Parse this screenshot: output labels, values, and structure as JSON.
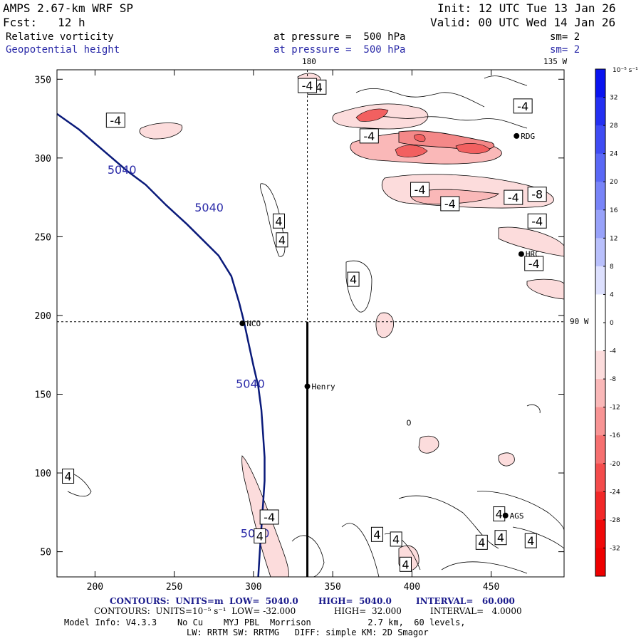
{
  "header": {
    "model": "AMPS 2.67-km WRF SP",
    "fcst": "Fcst:   12 h",
    "init": "Init: 12 UTC Tue 13 Jan 26",
    "valid": "Valid: 00 UTC Wed 14 Jan 26",
    "field1": "Relative vorticity",
    "field2": "Geopotential height",
    "pressure1": "at pressure =  500 hPa",
    "pressure2": "at pressure =  500 hPa",
    "sm1": "sm= 2",
    "sm2": "sm= 2"
  },
  "colors": {
    "height_contour": "#0a1a7a",
    "frame": "#000000"
  },
  "chart_data": {
    "type": "contour",
    "xlim": [
      176,
      496
    ],
    "ylim": [
      34,
      356
    ],
    "x_ticks": [
      200,
      250,
      300,
      350,
      400,
      450
    ],
    "y_ticks": [
      50,
      100,
      150,
      200,
      250,
      300,
      350
    ],
    "meridian_labels": {
      "top_180": "180",
      "top_135W": "135 W",
      "right_90W": "90 W"
    },
    "reference_lines": {
      "x_dashed": 334,
      "y_dashed": 196
    },
    "cross_section_line": {
      "x": 334,
      "y_from": 34,
      "y_to": 196
    },
    "height_contour": {
      "label": "5040",
      "points": [
        [
          176,
          328
        ],
        [
          190,
          318
        ],
        [
          205,
          305
        ],
        [
          220,
          292
        ],
        [
          232,
          283
        ],
        [
          245,
          270
        ],
        [
          258,
          258
        ],
        [
          268,
          248
        ],
        [
          278,
          238
        ],
        [
          286,
          225
        ],
        [
          291,
          208
        ],
        [
          294,
          196
        ],
        [
          297,
          182
        ],
        [
          300,
          168
        ],
        [
          303,
          155
        ],
        [
          305,
          140
        ],
        [
          306,
          125
        ],
        [
          307,
          110
        ],
        [
          307,
          95
        ],
        [
          306,
          80
        ],
        [
          305,
          65
        ],
        [
          304,
          50
        ],
        [
          303,
          34
        ]
      ],
      "label_positions": [
        [
          217,
          290
        ],
        [
          272,
          266
        ],
        [
          298,
          154
        ],
        [
          301,
          59
        ]
      ]
    },
    "stations": [
      {
        "name": "NCO",
        "x": 293,
        "y": 195
      },
      {
        "name": "Henry",
        "x": 334,
        "y": 155
      },
      {
        "name": "RDG",
        "x": 466,
        "y": 314
      },
      {
        "name": "HRC",
        "x": 469,
        "y": 239
      },
      {
        "name": "AGS",
        "x": 459,
        "y": 73
      }
    ],
    "vorticity_labels": [
      {
        "text": "-4",
        "x": 213,
        "y": 324
      },
      {
        "text": "-4",
        "x": 340,
        "y": 345
      },
      {
        "text": "-4",
        "x": 334,
        "y": 346
      },
      {
        "text": "-4",
        "x": 373,
        "y": 314
      },
      {
        "text": "-4",
        "x": 405,
        "y": 280
      },
      {
        "text": "-4",
        "x": 424,
        "y": 271
      },
      {
        "text": "-4",
        "x": 464,
        "y": 275
      },
      {
        "text": "-8",
        "x": 479,
        "y": 277
      },
      {
        "text": "-4",
        "x": 479,
        "y": 260
      },
      {
        "text": "-4",
        "x": 470,
        "y": 333
      },
      {
        "text": "-4",
        "x": 477,
        "y": 233
      },
      {
        "text": "4",
        "x": 316,
        "y": 260
      },
      {
        "text": "4",
        "x": 318,
        "y": 248
      },
      {
        "text": "4",
        "x": 363,
        "y": 223
      },
      {
        "text": "4",
        "x": 183,
        "y": 98
      },
      {
        "text": "-4",
        "x": 310,
        "y": 72
      },
      {
        "text": "4",
        "x": 304,
        "y": 60
      },
      {
        "text": "4",
        "x": 378,
        "y": 61
      },
      {
        "text": "4",
        "x": 390,
        "y": 58
      },
      {
        "text": "4",
        "x": 455,
        "y": 74
      },
      {
        "text": "4",
        "x": 456,
        "y": 59
      },
      {
        "text": "4",
        "x": 444,
        "y": 56
      },
      {
        "text": "4",
        "x": 475,
        "y": 57
      },
      {
        "text": "4",
        "x": 396,
        "y": 42
      }
    ],
    "zero_label": {
      "text": "0",
      "x": 398,
      "y": 130
    },
    "colorbar": {
      "units": "10⁻⁵ s⁻¹",
      "levels": [
        36,
        32,
        28,
        24,
        20,
        16,
        12,
        8,
        4,
        0,
        -4,
        -8,
        -12,
        -16,
        -20,
        -24,
        -28,
        -32,
        -36
      ],
      "tick_labels": [
        "32",
        "28",
        "24",
        "20",
        "16",
        "12",
        "8",
        "4",
        "0",
        "-4",
        "-8",
        "-12",
        "-16",
        "-20",
        "-24",
        "-28",
        "-32"
      ],
      "colors": [
        "#0a14f0",
        "#2430f2",
        "#3f4cf4",
        "#5a68f6",
        "#7884f8",
        "#98a2fa",
        "#b9c0fc",
        "#dde0fe",
        "#ffffff",
        "#ffffff",
        "#fcdcdc",
        "#fab8b8",
        "#f89494",
        "#f67070",
        "#f44c4c",
        "#f22828",
        "#f00a0a",
        "#ee0000"
      ]
    }
  },
  "footer": {
    "line1_left": "CONTOURS:  UNITS=m  LOW=  5040.0",
    "line1_high": "HIGH=  5040.0",
    "line1_interval": "INTERVAL=   60.000",
    "line2_left": "CONTOURS:  UNITS=10⁻⁵ s⁻¹  LOW= -32.000",
    "line2_high": "HIGH=  32.000",
    "line2_interval": "INTERVAL=   4.0000",
    "line3": "Model Info: V4.3.3    No Cu    MYJ PBL  Morrison           2.7 km,  60 levels,",
    "line4": "LW: RRTM SW: RRTMG   DIFF: simple KM: 2D Smagor"
  }
}
